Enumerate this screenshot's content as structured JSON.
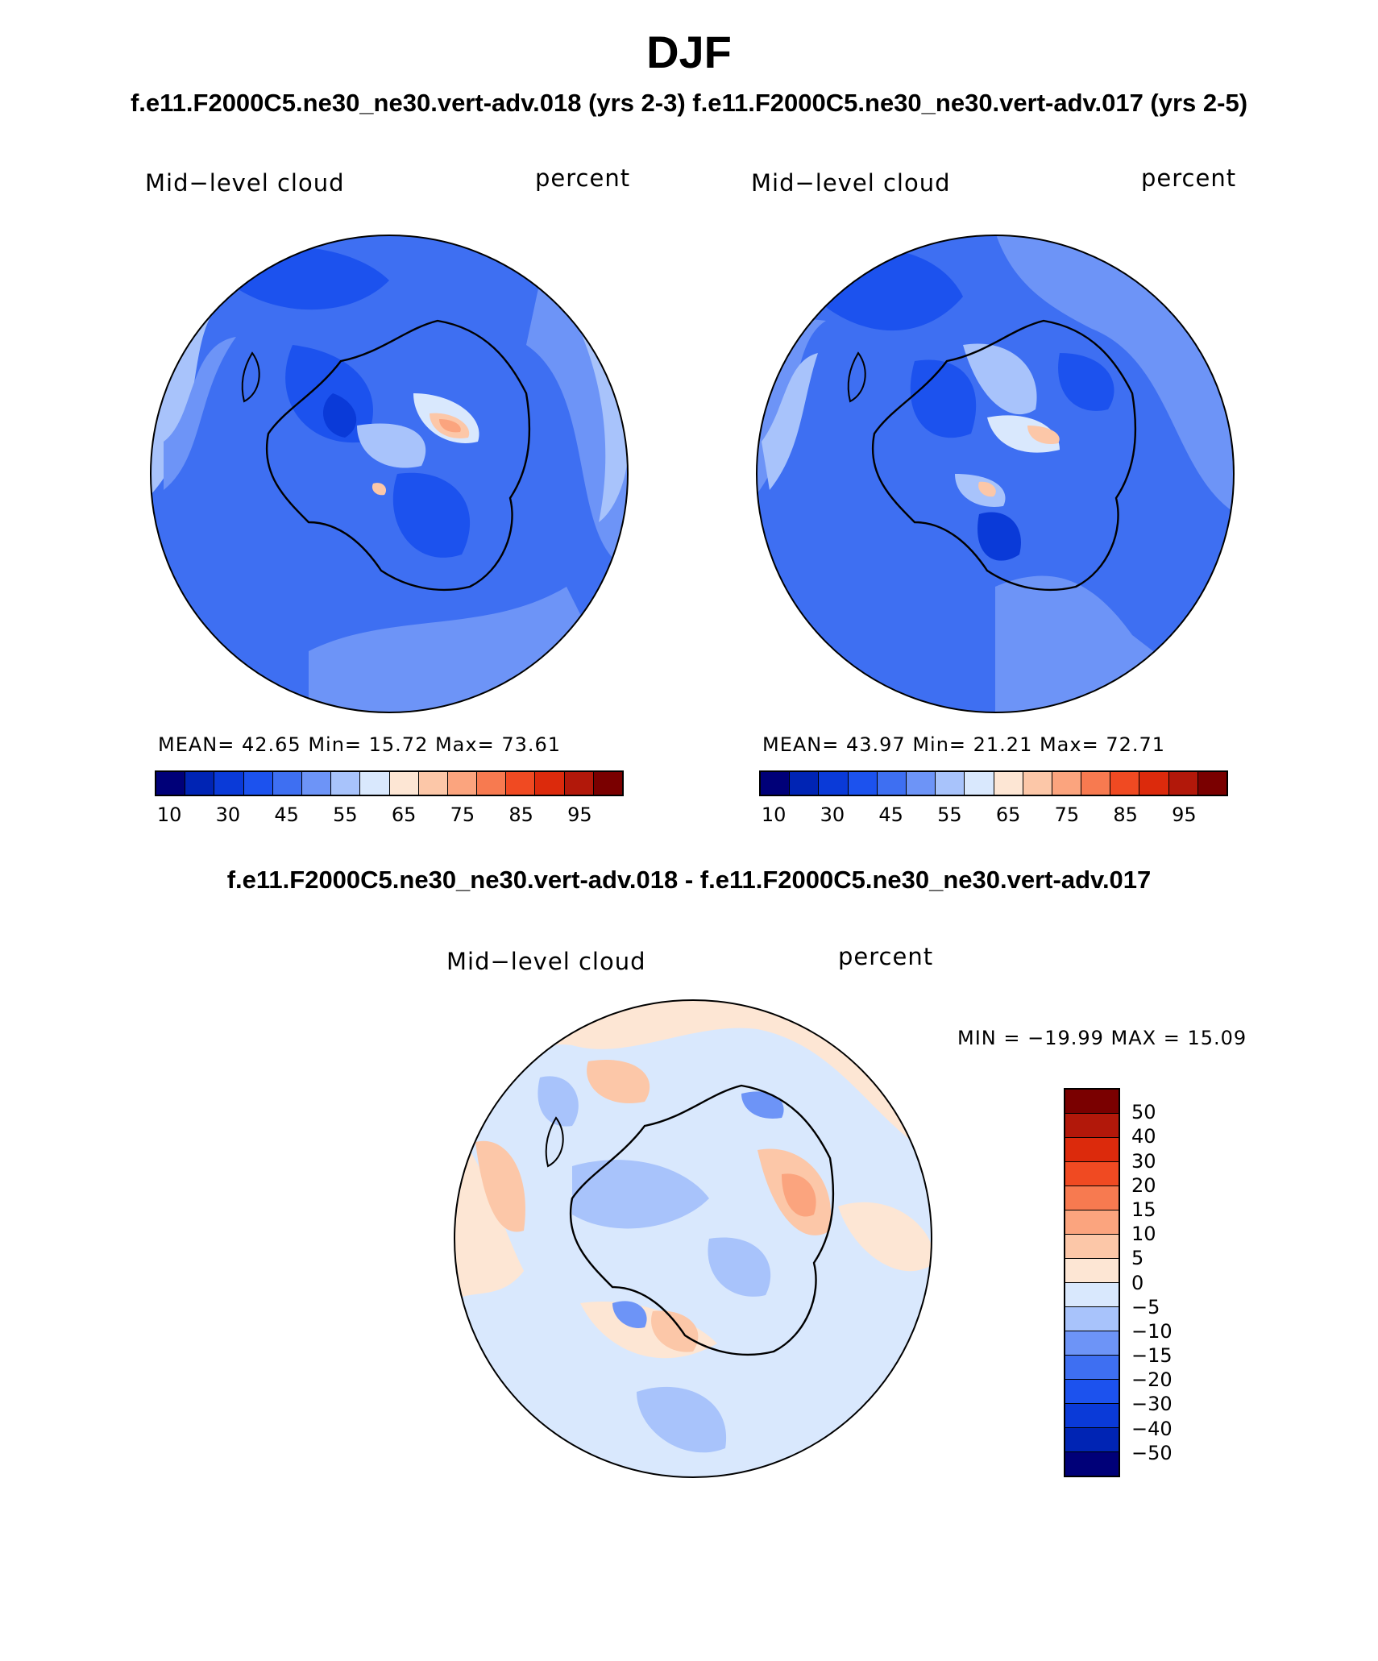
{
  "header": {
    "season": "DJF",
    "subtitle": "f.e11.F2000C5.ne30_ne30.vert-adv.018 (yrs 2-3)  f.e11.F2000C5.ne30_ne30.vert-adv.017 (yrs 2-5)",
    "diff_title": "f.e11.F2000C5.ne30_ne30.vert-adv.018 - f.e11.F2000C5.ne30_ne30.vert-adv.017"
  },
  "panels": [
    {
      "variable": "Mid−level cloud",
      "units": "percent",
      "stats": "MEAN=   42.65   Min=   15.72   Max=   73.61"
    },
    {
      "variable": "Mid−level cloud",
      "units": "percent",
      "stats": "MEAN=   43.97   Min=   21.21   Max=   72.71"
    }
  ],
  "diff_panel": {
    "variable": "Mid−level cloud",
    "units": "percent",
    "stats": "MIN = −19.99  MAX =    15.09"
  },
  "colorbar_abs": {
    "colors": [
      "#000078",
      "#0024b4",
      "#0a3ad8",
      "#1c52ee",
      "#3e6ff2",
      "#6d94f7",
      "#a8c3fb",
      "#d9e8fd",
      "#fde6d4",
      "#fcc7a8",
      "#fba47e",
      "#f77a50",
      "#f04a22",
      "#dc2a0c",
      "#b2180a",
      "#7a0000"
    ],
    "labels": [
      "10",
      "30",
      "45",
      "55",
      "65",
      "75",
      "85",
      "95"
    ]
  },
  "colorbar_diff": {
    "colors": [
      "#7a0000",
      "#b2180a",
      "#dc2a0c",
      "#f04a22",
      "#f77a50",
      "#fba47e",
      "#fcc7a8",
      "#fde6d4",
      "#d9e8fd",
      "#a8c3fb",
      "#6d94f7",
      "#3e6ff2",
      "#1c52ee",
      "#0a3ad8",
      "#0024b4",
      "#000078"
    ],
    "labels": [
      "50",
      "40",
      "30",
      "20",
      "15",
      "10",
      "5",
      "0",
      "−5",
      "−10",
      "−15",
      "−20",
      "−30",
      "−40",
      "−50"
    ]
  },
  "map_colors": {
    "deep": "#1c52ee",
    "mid": "#3e6ff2",
    "light": "#6d94f7",
    "pale": "#a8c3fb",
    "palest": "#d9e8fd",
    "dark": "#0a3ad8",
    "warm1": "#fde6d4",
    "warm2": "#fcc7a8",
    "warm3": "#fba47e"
  }
}
